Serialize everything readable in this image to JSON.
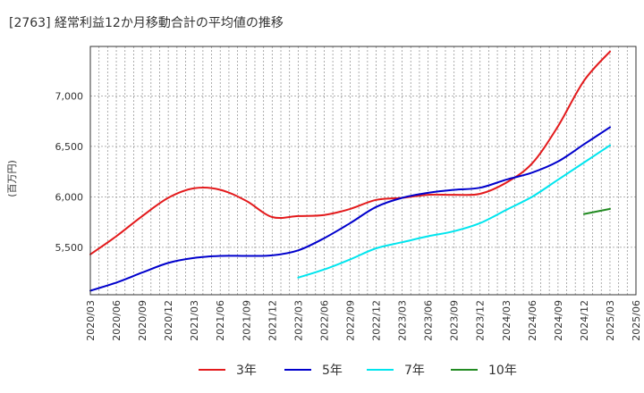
{
  "chart_data": {
    "type": "line",
    "title": "[2763]  経常利益12か月移動合計の平均値の推移",
    "ylabel": "(百万円)",
    "xlabel": "",
    "x": [
      "2020/03",
      "2020/06",
      "2020/09",
      "2020/12",
      "2021/03",
      "2021/06",
      "2021/09",
      "2021/12",
      "2022/03",
      "2022/06",
      "2022/09",
      "2022/12",
      "2023/03",
      "2023/06",
      "2023/09",
      "2023/12",
      "2024/03",
      "2024/06",
      "2024/09",
      "2024/12",
      "2025/03"
    ],
    "x_ticks": [
      "2020/03",
      "2020/06",
      "2020/09",
      "2020/12",
      "2021/03",
      "2021/06",
      "2021/09",
      "2021/12",
      "2022/03",
      "2022/06",
      "2022/09",
      "2022/12",
      "2023/03",
      "2023/06",
      "2023/09",
      "2023/12",
      "2024/03",
      "2024/06",
      "2024/09",
      "2024/12",
      "2025/03",
      "2025/06"
    ],
    "y_ticks": [
      5500,
      6000,
      6500,
      7000
    ],
    "y_tick_labels": [
      "5,500",
      "6,000",
      "6,500",
      "7,000"
    ],
    "ylim": [
      5030,
      7490
    ],
    "grid": true,
    "legend_position": "bottom",
    "series": [
      {
        "name": "3年",
        "color": "#e31a1c",
        "values": [
          5430,
          5610,
          5810,
          5990,
          6085,
          6070,
          5960,
          5800,
          5810,
          5820,
          5880,
          5970,
          5990,
          6020,
          6020,
          6030,
          6140,
          6330,
          6700,
          7150,
          7440
        ]
      },
      {
        "name": "5年",
        "color": "#0000cc",
        "values": [
          5070,
          5150,
          5250,
          5345,
          5395,
          5415,
          5415,
          5420,
          5470,
          5590,
          5740,
          5900,
          5990,
          6040,
          6070,
          6090,
          6170,
          6240,
          6350,
          6520,
          6690
        ]
      },
      {
        "name": "7年",
        "color": "#00e5ee",
        "values": [
          null,
          null,
          null,
          null,
          null,
          null,
          null,
          null,
          5200,
          5280,
          5380,
          5490,
          5550,
          5610,
          5660,
          5740,
          5870,
          6000,
          6170,
          6340,
          6510
        ]
      },
      {
        "name": "10年",
        "color": "#228b22",
        "values": [
          null,
          null,
          null,
          null,
          null,
          null,
          null,
          null,
          null,
          null,
          null,
          null,
          null,
          null,
          null,
          null,
          null,
          null,
          null,
          5830,
          5880
        ]
      }
    ]
  }
}
